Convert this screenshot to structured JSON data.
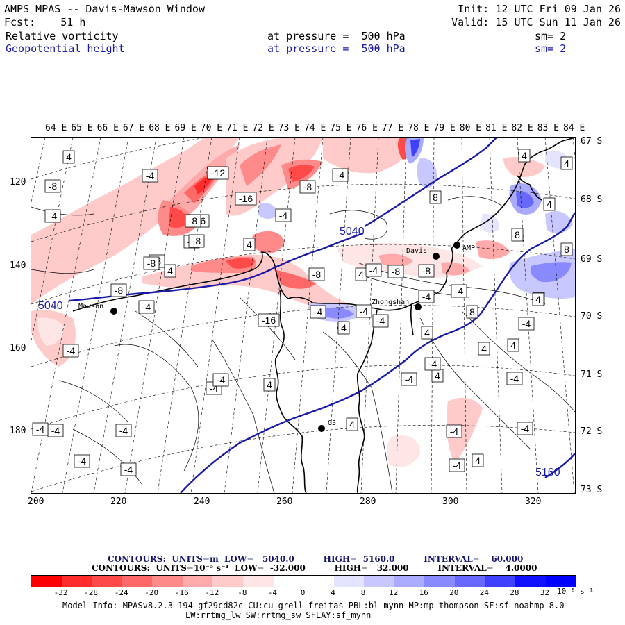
{
  "header": {
    "title": "AMPS MPAS -- Davis-Mawson Window",
    "forecast": "Fcst:    51 h",
    "init": "Init: 12 UTC Fri 09 Jan 26",
    "valid": "Valid: 15 UTC Sun 11 Jan 26",
    "field1_name": "Relative vorticity",
    "field1_level": "at pressure =  500 hPa",
    "field1_sm": "sm= 2",
    "field2_name": "Geopotential height",
    "field2_level": "at pressure =  500 hPa",
    "field2_sm": "sm= 2"
  },
  "map": {
    "top_longitude_labels": [
      "64 E",
      "65 E",
      "66 E",
      "67 E",
      "68 E",
      "69 E",
      "70 E",
      "71 E",
      "72 E",
      "73 E",
      "74 E",
      "75 E",
      "76 E",
      "77 E",
      "78 E",
      "79 E",
      "80 E",
      "81 E",
      "82 E",
      "83 E",
      "84 E"
    ],
    "right_latitude_labels": [
      "67 S",
      "68 S",
      "69 S",
      "70 S",
      "71 S",
      "72 S",
      "73 S"
    ],
    "left_grid_labels": [
      "120",
      "140",
      "160",
      "180"
    ],
    "bottom_grid_labels": [
      "200",
      "220",
      "240",
      "260",
      "280",
      "300",
      "320"
    ],
    "stations": [
      {
        "name": "Mawson"
      },
      {
        "name": "Davis"
      },
      {
        "name": "AMP"
      },
      {
        "name": "Zhongshan"
      },
      {
        "name": "G3"
      }
    ],
    "height_contour_labels": [
      "5040",
      "5040",
      "5160"
    ],
    "vorticity_contour_labels": [
      "4",
      "-4",
      "-8",
      "-12",
      "-16",
      "-16",
      "-8",
      "-4",
      "4",
      "-8",
      "-16",
      "-8",
      "-4",
      "4",
      "-4",
      "-4",
      "-8",
      "-4",
      "-4",
      "-8",
      "4",
      "-8",
      "-4",
      "-4",
      "4",
      "8",
      "8",
      "8",
      "8",
      "-4",
      "-4",
      "4",
      "-4",
      "-4",
      "-4",
      "4",
      "-4",
      "4",
      "4",
      "4",
      "4",
      "4",
      "-4",
      "-4",
      "-4",
      "-4",
      "-4",
      "4",
      "4",
      "-4",
      "-4",
      "-8",
      "-8",
      "-4",
      "4",
      "-8",
      "-4",
      "4",
      "-8",
      "-4",
      "4",
      "-4"
    ],
    "colors": {
      "negative_dark": "#ff0000",
      "positive_dark": "#0000ff",
      "height_contour": "#1a1aa6",
      "coast": "#000000"
    }
  },
  "legend": {
    "height_contours": "CONTOURS:  UNITS=m  LOW=   5040.0          HIGH=  5160.0          INTERVAL=    60.000",
    "vort_contours": "CONTOURS:  UNITS=10⁻⁵ s⁻¹  LOW=  -32.000          HIGH=   32.000          INTERVAL=    4.0000",
    "colorbar_labels": [
      "-32",
      "-28",
      "-24",
      "-20",
      "-16",
      "-12",
      "-8",
      "-4",
      "0",
      "4",
      "8",
      "12",
      "16",
      "20",
      "24",
      "28",
      "32"
    ],
    "colorbar_units": "10⁻⁵ s⁻¹",
    "colorbar_colors": [
      "#ff0000",
      "#ff2c2c",
      "#ff4a4a",
      "#ff6868",
      "#ff8a8a",
      "#ffaaaa",
      "#ffcaca",
      "#ffe6e6",
      "#ffffff",
      "#ffffff",
      "#e4e4ff",
      "#c8c8ff",
      "#aaaaff",
      "#8a8aff",
      "#6868ff",
      "#4040ff",
      "#1010ff",
      "#0000ff"
    ]
  },
  "model_info": {
    "line1": "Model Info: MPASv8.2.3-194-gf29cd82c CU:cu_grell_freitas PBL:bl_mynn MP:mp_thompson SF:sf_noahmp 8.0",
    "line2": "LW:rrtmg_lw SW:rrtmg_sw SFLAY:sf_mynn"
  }
}
